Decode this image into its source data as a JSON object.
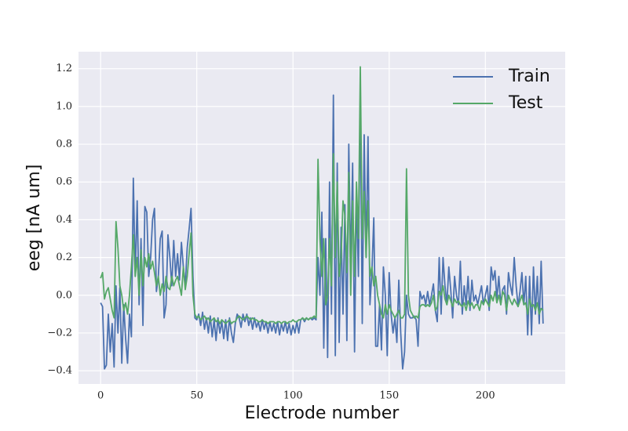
{
  "chart_data": {
    "type": "line",
    "xlabel": "Electrode number",
    "ylabel": "eeg [nA um]",
    "x": [
      0,
      1,
      2,
      3,
      4,
      5,
      6,
      7,
      8,
      9,
      10,
      11,
      12,
      13,
      14,
      15,
      16,
      17,
      18,
      19,
      20,
      21,
      22,
      23,
      24,
      25,
      26,
      27,
      28,
      29,
      30,
      31,
      32,
      33,
      34,
      35,
      36,
      37,
      38,
      39,
      40,
      41,
      42,
      43,
      44,
      45,
      46,
      47,
      48,
      49,
      50,
      51,
      52,
      53,
      54,
      55,
      56,
      57,
      58,
      59,
      60,
      61,
      62,
      63,
      64,
      65,
      66,
      67,
      68,
      69,
      70,
      71,
      72,
      73,
      74,
      75,
      76,
      77,
      78,
      79,
      80,
      81,
      82,
      83,
      84,
      85,
      86,
      87,
      88,
      89,
      90,
      91,
      92,
      93,
      94,
      95,
      96,
      97,
      98,
      99,
      100,
      101,
      102,
      103,
      104,
      105,
      106,
      107,
      108,
      109,
      110,
      111,
      112,
      113,
      114,
      115,
      116,
      117,
      118,
      119,
      120,
      121,
      122,
      123,
      124,
      125,
      126,
      127,
      128,
      129,
      130,
      131,
      132,
      133,
      134,
      135,
      136,
      137,
      138,
      139,
      140,
      141,
      142,
      143,
      144,
      145,
      146,
      147,
      148,
      149,
      150,
      151,
      152,
      153,
      154,
      155,
      156,
      157,
      158,
      159,
      160,
      161,
      162,
      163,
      164,
      165,
      166,
      167,
      168,
      169,
      170,
      171,
      172,
      173,
      174,
      175,
      176,
      177,
      178,
      179,
      180,
      181,
      182,
      183,
      184,
      185,
      186,
      187,
      188,
      189,
      190,
      191,
      192,
      193,
      194,
      195,
      196,
      197,
      198,
      199,
      200,
      201,
      202,
      203,
      204,
      205,
      206,
      207,
      208,
      209,
      210,
      211,
      212,
      213,
      214,
      215,
      216,
      217,
      218,
      219,
      220,
      221,
      222,
      223,
      224,
      225,
      226,
      227,
      228,
      229,
      230
    ],
    "series": [
      {
        "name": "Train",
        "color": "#4c72b0",
        "values": [
          -0.04,
          -0.06,
          -0.39,
          -0.37,
          -0.1,
          -0.3,
          -0.15,
          -0.38,
          0.05,
          -0.2,
          0.04,
          -0.36,
          -0.05,
          -0.23,
          -0.36,
          -0.1,
          -0.22,
          0.62,
          0.1,
          0.5,
          -0.05,
          0.3,
          -0.16,
          0.47,
          0.44,
          0.1,
          0.2,
          0.4,
          0.46,
          0.02,
          0.1,
          0.3,
          0.34,
          -0.12,
          -0.05,
          0.32,
          0.2,
          0.05,
          0.29,
          0.1,
          0.22,
          0.08,
          0.28,
          0.15,
          0.05,
          0.25,
          0.35,
          0.46,
          0.1,
          -0.12,
          -0.13,
          -0.1,
          -0.16,
          -0.09,
          -0.18,
          -0.12,
          -0.2,
          -0.11,
          -0.22,
          -0.13,
          -0.24,
          -0.12,
          -0.2,
          -0.14,
          -0.23,
          -0.13,
          -0.24,
          -0.12,
          -0.2,
          -0.25,
          -0.15,
          -0.1,
          -0.12,
          -0.17,
          -0.1,
          -0.14,
          -0.1,
          -0.16,
          -0.12,
          -0.18,
          -0.12,
          -0.17,
          -0.14,
          -0.19,
          -0.13,
          -0.18,
          -0.14,
          -0.2,
          -0.14,
          -0.19,
          -0.15,
          -0.2,
          -0.14,
          -0.21,
          -0.15,
          -0.19,
          -0.14,
          -0.2,
          -0.15,
          -0.21,
          -0.16,
          -0.2,
          -0.14,
          -0.2,
          -0.13,
          -0.12,
          -0.14,
          -0.12,
          -0.13,
          -0.12,
          -0.13,
          -0.12,
          -0.13,
          0.2,
          0.0,
          0.44,
          -0.28,
          0.3,
          -0.33,
          0.6,
          -0.1,
          1.06,
          -0.32,
          0.7,
          -0.25,
          0.36,
          -0.1,
          0.48,
          -0.24,
          0.8,
          0.15,
          0.7,
          -0.3,
          0.55,
          0.1,
          1.08,
          -0.15,
          0.85,
          0.2,
          0.84,
          -0.05,
          0.12,
          0.41,
          -0.27,
          -0.27,
          -0.05,
          -0.29,
          0.15,
          0.0,
          -0.32,
          0.12,
          -0.1,
          -0.2,
          -0.12,
          -0.25,
          0.08,
          -0.2,
          -0.39,
          -0.3,
          0.0,
          -0.1,
          -0.12,
          -0.12,
          -0.11,
          -0.13,
          -0.27,
          0.02,
          -0.02,
          0.0,
          -0.05,
          0.02,
          -0.05,
          0.0,
          0.06,
          -0.08,
          -0.14,
          0.2,
          -0.1,
          0.2,
          0.05,
          -0.05,
          0.15,
          0.03,
          -0.12,
          0.1,
          0.0,
          -0.05,
          0.18,
          -0.1,
          0.05,
          -0.05,
          0.1,
          -0.08,
          0.08,
          -0.03,
          0.0,
          -0.05,
          0.0,
          0.05,
          -0.05,
          0.0,
          0.05,
          -0.08,
          0.15,
          0.08,
          0.13,
          -0.02,
          0.1,
          -0.05,
          0.03,
          0.05,
          -0.1,
          0.12,
          0.05,
          0.0,
          0.2,
          0.05,
          -0.06,
          0.02,
          0.12,
          -0.05,
          0.1,
          -0.21,
          0.1,
          -0.21,
          0.15,
          -0.1,
          0.1,
          -0.15,
          0.18,
          -0.15
        ]
      },
      {
        "name": "Test",
        "color": "#55a868",
        "values": [
          0.09,
          0.12,
          -0.02,
          0.02,
          0.04,
          -0.02,
          -0.08,
          -0.12,
          0.39,
          0.25,
          0.05,
          0.0,
          -0.08,
          -0.04,
          -0.1,
          0.0,
          0.15,
          0.32,
          0.1,
          0.2,
          0.0,
          0.24,
          0.05,
          0.2,
          0.15,
          0.22,
          0.14,
          0.18,
          0.12,
          0.05,
          0.1,
          0.0,
          0.06,
          0.02,
          0.1,
          0.04,
          0.03,
          0.1,
          0.05,
          0.08,
          0.1,
          0.05,
          0.0,
          0.15,
          0.03,
          0.1,
          0.22,
          0.33,
          0.0,
          -0.1,
          -0.12,
          -0.11,
          -0.13,
          -0.12,
          -0.11,
          -0.13,
          -0.12,
          -0.14,
          -0.13,
          -0.12,
          -0.14,
          -0.13,
          -0.15,
          -0.13,
          -0.14,
          -0.15,
          -0.14,
          -0.13,
          -0.15,
          -0.14,
          -0.14,
          -0.12,
          -0.11,
          -0.12,
          -0.13,
          -0.12,
          -0.11,
          -0.12,
          -0.13,
          -0.12,
          -0.13,
          -0.13,
          -0.14,
          -0.14,
          -0.13,
          -0.14,
          -0.14,
          -0.15,
          -0.14,
          -0.14,
          -0.14,
          -0.15,
          -0.14,
          -0.14,
          -0.15,
          -0.14,
          -0.14,
          -0.15,
          -0.14,
          -0.14,
          -0.13,
          -0.14,
          -0.14,
          -0.13,
          -0.13,
          -0.12,
          -0.13,
          -0.12,
          -0.13,
          -0.12,
          -0.12,
          -0.11,
          -0.12,
          0.72,
          0.3,
          0.1,
          0.3,
          -0.05,
          0.0,
          0.3,
          0.05,
          0.75,
          0.2,
          0.6,
          0.1,
          0.2,
          0.5,
          0.42,
          0.12,
          0.65,
          0.0,
          0.5,
          0.1,
          0.6,
          0.3,
          1.21,
          0.3,
          0.55,
          0.2,
          0.5,
          0.1,
          0.15,
          0.05,
          0.1,
          0.0,
          -0.05,
          -0.1,
          -0.12,
          -0.05,
          -0.1,
          -0.05,
          -0.08,
          -0.1,
          -0.12,
          -0.1,
          -0.08,
          -0.12,
          -0.12,
          -0.1,
          0.67,
          0.0,
          -0.08,
          -0.1,
          -0.12,
          -0.11,
          -0.12,
          -0.06,
          -0.05,
          -0.05,
          -0.06,
          -0.05,
          -0.06,
          -0.04,
          0.0,
          -0.08,
          -0.06,
          0.02,
          0.0,
          0.05,
          -0.02,
          -0.05,
          0.0,
          -0.03,
          -0.06,
          -0.02,
          -0.04,
          -0.03,
          -0.05,
          -0.06,
          -0.04,
          -0.08,
          -0.03,
          -0.06,
          -0.04,
          -0.07,
          -0.05,
          -0.05,
          -0.08,
          -0.03,
          -0.05,
          -0.02,
          -0.04,
          -0.06,
          0.0,
          -0.03,
          0.02,
          -0.04,
          0.0,
          -0.05,
          0.02,
          0.0,
          -0.08,
          0.0,
          -0.03,
          -0.05,
          -0.02,
          -0.04,
          -0.06,
          -0.03,
          0.0,
          -0.05,
          -0.04,
          -0.1,
          -0.02,
          -0.06,
          -0.05,
          -0.08,
          -0.04,
          -0.1,
          -0.07,
          -0.08
        ]
      }
    ],
    "xlim": [
      -11.5,
      241.5
    ],
    "xticks": [
      0,
      50,
      100,
      150,
      200
    ],
    "ylim": [
      -0.47,
      1.29
    ],
    "yticks": [
      {
        "value": -0.4,
        "label": "−0.4"
      },
      {
        "value": -0.2,
        "label": "−0.2"
      },
      {
        "value": 0,
        "label": "0.0"
      },
      0.2,
      0.4,
      0.6,
      0.8,
      {
        "value": 1,
        "label": "1.0"
      },
      1.2
    ],
    "grid": true,
    "legend": "upper right"
  }
}
